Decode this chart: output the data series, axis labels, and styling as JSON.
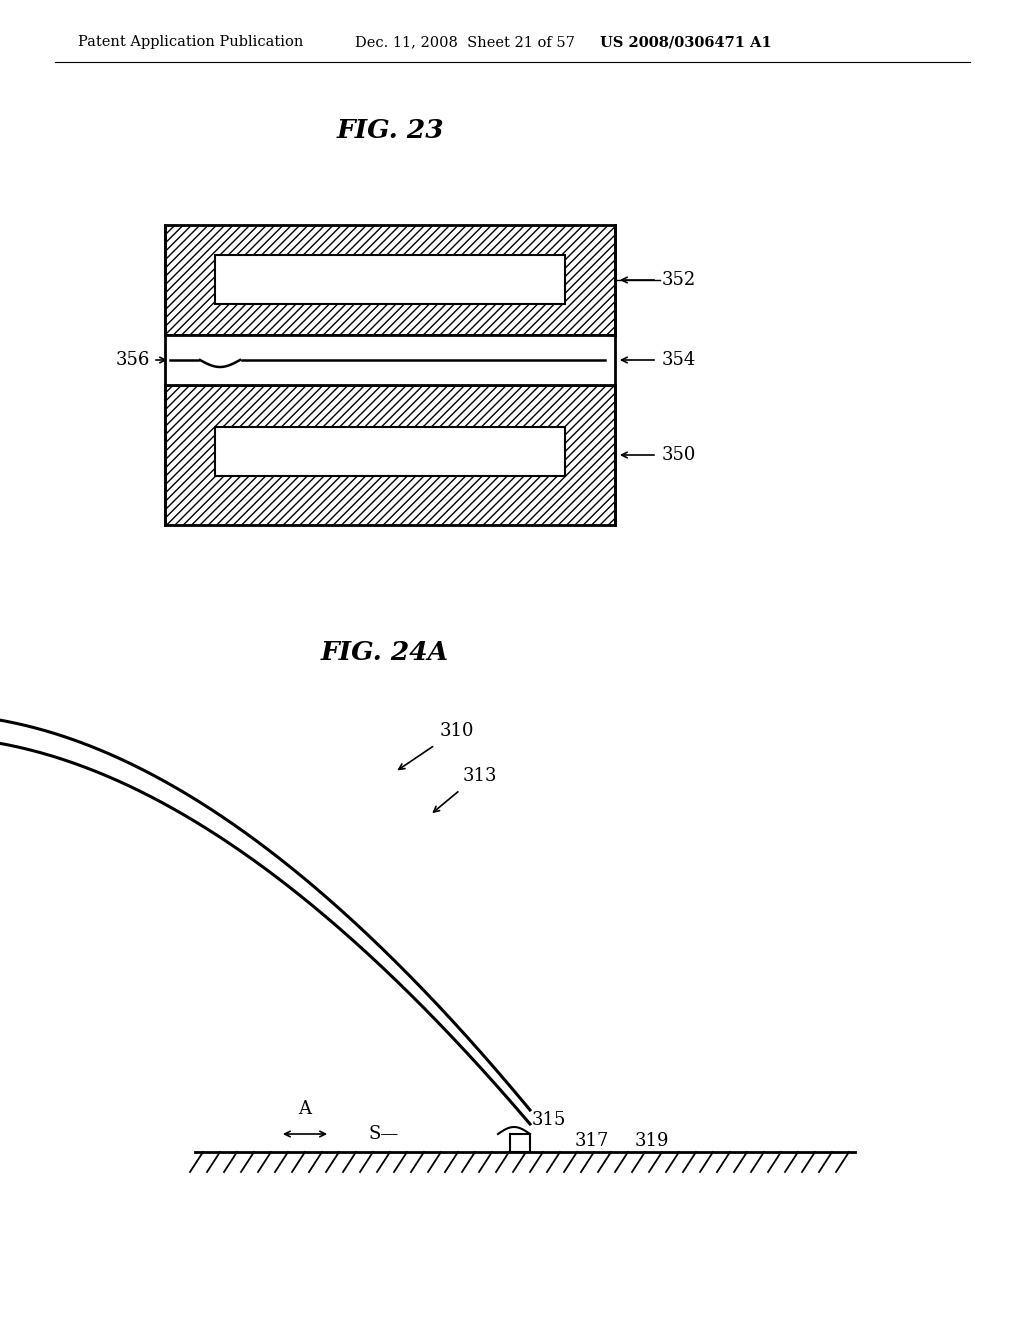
{
  "header_left": "Patent Application Publication",
  "header_mid": "Dec. 11, 2008  Sheet 21 of 57",
  "header_right": "US 2008/0306471 A1",
  "fig23_title": "FIG. 23",
  "fig24a_title": "FIG. 24A",
  "label_352": "352",
  "label_354": "354",
  "label_356": "356",
  "label_350": "350",
  "label_310": "310",
  "label_313": "313",
  "label_315": "315",
  "label_317": "317",
  "label_319": "319",
  "label_A": "A",
  "label_S": "S",
  "bg_color": "#ffffff"
}
